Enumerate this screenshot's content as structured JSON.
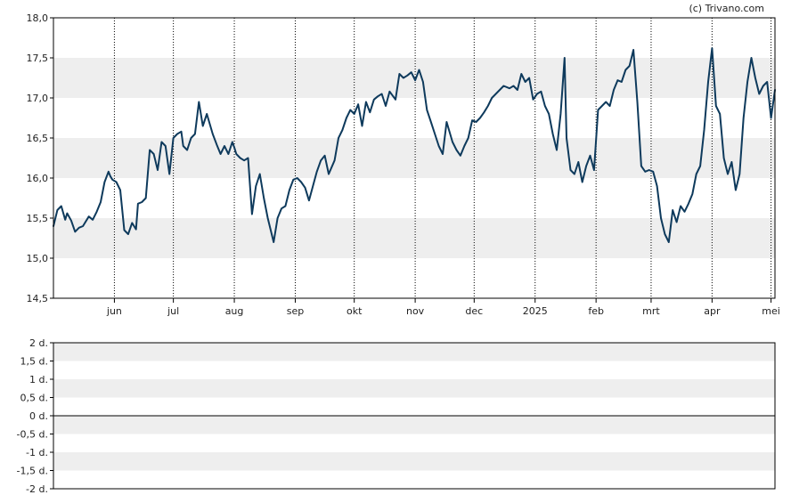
{
  "credit": "(c) Trivano.com",
  "colors": {
    "line": "#0e3a5c",
    "band": "#eeeeee",
    "axis": "#000000",
    "grid_vertical": "#000000",
    "text": "#222222"
  },
  "chart_data": [
    {
      "type": "line",
      "title": "",
      "xlabel": "",
      "ylabel": "",
      "ylim": [
        14.5,
        18.0
      ],
      "y_ticks": [
        "14,5",
        "15,0",
        "15,5",
        "16,0",
        "16,5",
        "17,0",
        "17,5",
        "18,0"
      ],
      "y_tick_values": [
        14.5,
        15.0,
        15.5,
        16.0,
        16.5,
        17.0,
        17.5,
        18.0
      ],
      "x_tick_labels": [
        "jun",
        "jul",
        "aug",
        "sep",
        "okt",
        "nov",
        "dec",
        "2025",
        "feb",
        "mrt",
        "apr",
        "mei"
      ],
      "x_tick_dates": [
        "2024-06-01",
        "2024-07-01",
        "2024-08-01",
        "2024-09-01",
        "2024-10-01",
        "2024-11-01",
        "2024-12-01",
        "2025-01-01",
        "2025-02-01",
        "2025-03-01",
        "2025-04-01",
        "2025-05-01"
      ],
      "x_range": [
        "2024-05-01",
        "2025-05-03"
      ],
      "grid": "vertical dotted at month ticks, alternating horizontal bands",
      "legend": "none",
      "series": [
        {
          "x": [
            "2024-05-01",
            "2024-05-03",
            "2024-05-05",
            "2024-05-07",
            "2024-05-08",
            "2024-05-10",
            "2024-05-12",
            "2024-05-14",
            "2024-05-16",
            "2024-05-19",
            "2024-05-21",
            "2024-05-23",
            "2024-05-25",
            "2024-05-27",
            "2024-05-29",
            "2024-05-30",
            "2024-05-31",
            "2024-06-02",
            "2024-06-04",
            "2024-06-06",
            "2024-06-08",
            "2024-06-10",
            "2024-06-12",
            "2024-06-13",
            "2024-06-15",
            "2024-06-17",
            "2024-06-19",
            "2024-06-21",
            "2024-06-23",
            "2024-06-25",
            "2024-06-27",
            "2024-06-29",
            "2024-07-01",
            "2024-07-03",
            "2024-07-05",
            "2024-07-06",
            "2024-07-08",
            "2024-07-10",
            "2024-07-12",
            "2024-07-14",
            "2024-07-16",
            "2024-07-18",
            "2024-07-21",
            "2024-07-23",
            "2024-07-25",
            "2024-07-27",
            "2024-07-29",
            "2024-07-31",
            "2024-08-01",
            "2024-08-02",
            "2024-08-04",
            "2024-08-06",
            "2024-08-08",
            "2024-08-10",
            "2024-08-12",
            "2024-08-14",
            "2024-08-16",
            "2024-08-18",
            "2024-08-21",
            "2024-08-23",
            "2024-08-25",
            "2024-08-27",
            "2024-08-29",
            "2024-08-31",
            "2024-09-02",
            "2024-09-04",
            "2024-09-06",
            "2024-09-08",
            "2024-09-10",
            "2024-09-12",
            "2024-09-14",
            "2024-09-16",
            "2024-09-18",
            "2024-09-21",
            "2024-09-23",
            "2024-09-25",
            "2024-09-27",
            "2024-09-29",
            "2024-10-01",
            "2024-10-03",
            "2024-10-05",
            "2024-10-07",
            "2024-10-09",
            "2024-10-11",
            "2024-10-13",
            "2024-10-15",
            "2024-10-17",
            "2024-10-19",
            "2024-10-22",
            "2024-10-24",
            "2024-10-26",
            "2024-10-28",
            "2024-10-30",
            "2024-11-01",
            "2024-11-03",
            "2024-11-05",
            "2024-11-07",
            "2024-11-09",
            "2024-11-11",
            "2024-11-13",
            "2024-11-15",
            "2024-11-17",
            "2024-11-20",
            "2024-11-22",
            "2024-11-24",
            "2024-11-26",
            "2024-11-28",
            "2024-11-30",
            "2024-12-02",
            "2024-12-04",
            "2024-12-06",
            "2024-12-08",
            "2024-12-10",
            "2024-12-12",
            "2024-12-14",
            "2024-12-16",
            "2024-12-19",
            "2024-12-21",
            "2024-12-23",
            "2024-12-25",
            "2024-12-27",
            "2024-12-29",
            "2024-12-31",
            "2025-01-02",
            "2025-01-04",
            "2025-01-06",
            "2025-01-08",
            "2025-01-10",
            "2025-01-12",
            "2025-01-14",
            "2025-01-16",
            "2025-01-17",
            "2025-01-19",
            "2025-01-21",
            "2025-01-23",
            "2025-01-25",
            "2025-01-27",
            "2025-01-29",
            "2025-01-31",
            "2025-02-02",
            "2025-02-04",
            "2025-02-06",
            "2025-02-08",
            "2025-02-10",
            "2025-02-12",
            "2025-02-14",
            "2025-02-16",
            "2025-02-18",
            "2025-02-20",
            "2025-02-22",
            "2025-02-24",
            "2025-02-26",
            "2025-02-28",
            "2025-03-02",
            "2025-03-04",
            "2025-03-06",
            "2025-03-08",
            "2025-03-10",
            "2025-03-12",
            "2025-03-14",
            "2025-03-16",
            "2025-03-18",
            "2025-03-20",
            "2025-03-22",
            "2025-03-24",
            "2025-03-26",
            "2025-03-28",
            "2025-03-30",
            "2025-04-01",
            "2025-04-03",
            "2025-04-05",
            "2025-04-07",
            "2025-04-09",
            "2025-04-11",
            "2025-04-13",
            "2025-04-15",
            "2025-04-17",
            "2025-04-19",
            "2025-04-21",
            "2025-04-23",
            "2025-04-25",
            "2025-04-27",
            "2025-04-29",
            "2025-05-01",
            "2025-05-03"
          ],
          "y": [
            15.4,
            15.6,
            15.65,
            15.48,
            15.56,
            15.47,
            15.33,
            15.38,
            15.4,
            15.52,
            15.48,
            15.58,
            15.7,
            15.95,
            16.08,
            16.02,
            15.98,
            15.95,
            15.85,
            15.35,
            15.3,
            15.44,
            15.36,
            15.68,
            15.7,
            15.75,
            16.35,
            16.3,
            16.1,
            16.45,
            16.4,
            16.05,
            16.5,
            16.55,
            16.58,
            16.4,
            16.35,
            16.5,
            16.55,
            16.95,
            16.65,
            16.8,
            16.55,
            16.42,
            16.3,
            16.4,
            16.3,
            16.45,
            16.38,
            16.3,
            16.25,
            16.22,
            16.25,
            15.55,
            15.9,
            16.05,
            15.75,
            15.5,
            15.2,
            15.5,
            15.62,
            15.65,
            15.85,
            15.98,
            16.0,
            15.95,
            15.88,
            15.72,
            15.9,
            16.08,
            16.22,
            16.28,
            16.05,
            16.22,
            16.5,
            16.6,
            16.75,
            16.85,
            16.8,
            16.92,
            16.65,
            16.95,
            16.82,
            16.98,
            17.02,
            17.05,
            16.9,
            17.08,
            16.98,
            17.3,
            17.25,
            17.28,
            17.32,
            17.22,
            17.35,
            17.2,
            16.85,
            16.7,
            16.55,
            16.4,
            16.3,
            16.7,
            16.45,
            16.35,
            16.28,
            16.4,
            16.5,
            16.72,
            16.7,
            16.75,
            16.82,
            16.9,
            17.0,
            17.05,
            17.1,
            17.15,
            17.12,
            17.15,
            17.1,
            17.3,
            17.2,
            17.25,
            16.98,
            17.05,
            17.08,
            16.9,
            16.8,
            16.55,
            16.35,
            16.8,
            17.5,
            16.5,
            16.1,
            16.05,
            16.2,
            15.95,
            16.15,
            16.28,
            16.1,
            16.85,
            16.9,
            16.95,
            16.9,
            17.1,
            17.22,
            17.2,
            17.35,
            17.4,
            17.6,
            16.95,
            16.15,
            16.08,
            16.1,
            16.08,
            15.9,
            15.5,
            15.3,
            15.2,
            15.6,
            15.45,
            15.65,
            15.58,
            15.68,
            15.8,
            16.05,
            16.15,
            16.6,
            17.2,
            17.62,
            16.9,
            16.8,
            16.25,
            16.05,
            16.2,
            15.85,
            16.05,
            16.75,
            17.2,
            17.5,
            17.25,
            17.05,
            17.15,
            17.2,
            16.75,
            17.1
          ]
        }
      ]
    },
    {
      "type": "bar",
      "title": "",
      "xlabel": "",
      "ylabel": "",
      "ylim": [
        -2,
        2
      ],
      "y_ticks": [
        "2 d.",
        "1,5 d.",
        "1 d.",
        "0,5 d.",
        "0 d.",
        "-0,5 d.",
        "-1 d.",
        "-1,5 d.",
        "-2 d."
      ],
      "y_tick_values": [
        2,
        1.5,
        1,
        0.5,
        0,
        -0.5,
        -1,
        -1.5,
        -2
      ],
      "grid": "alternating horizontal bands, zero line",
      "legend": "none",
      "values": []
    }
  ]
}
